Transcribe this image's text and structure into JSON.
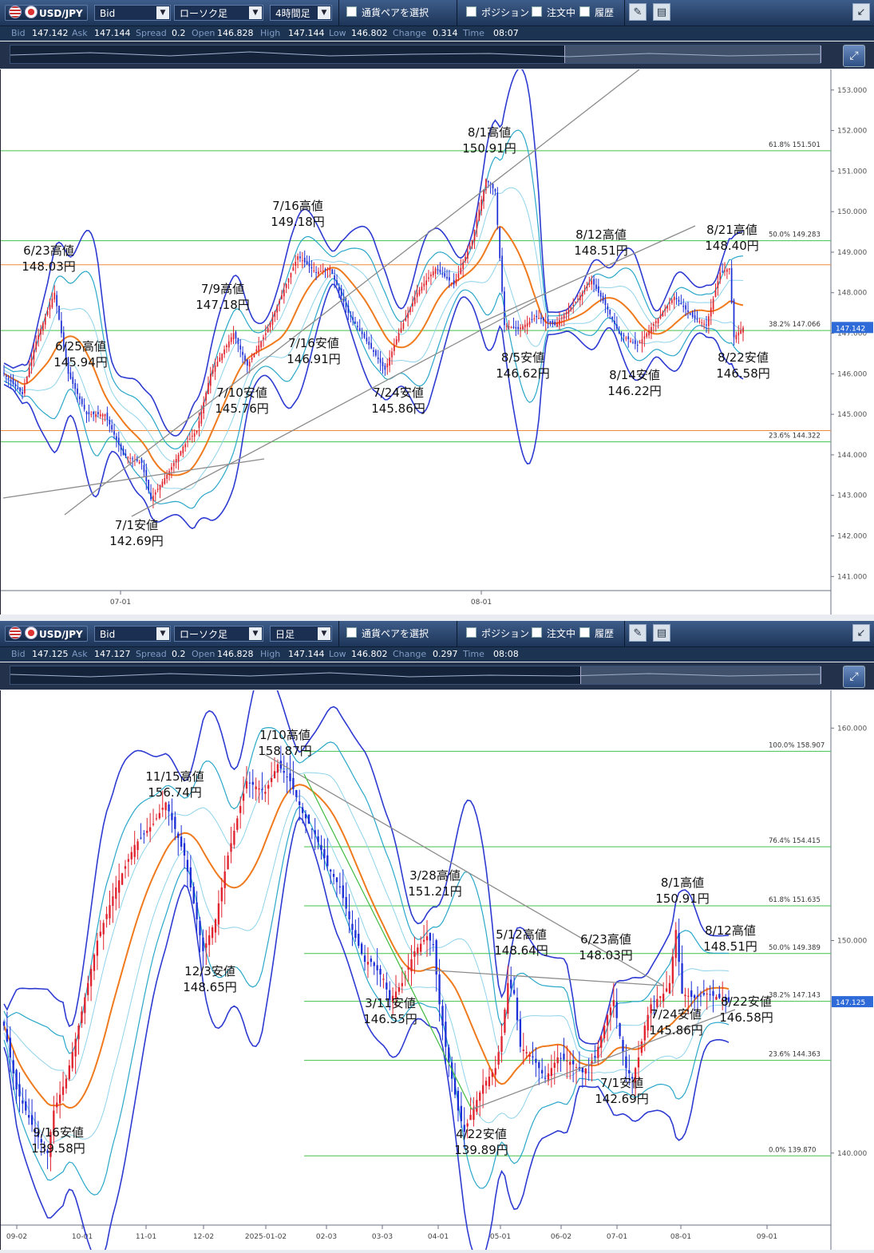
{
  "panels": [
    {
      "toolbar": {
        "pair": "USD/JPY",
        "price_type": "Bid",
        "chart_type": "ローソク足",
        "timeframe": "4時間足",
        "select_pair": "通貨ペアを選択",
        "position": "ポジション",
        "orders": "注文中",
        "history": "履歴"
      },
      "quote": {
        "bid_label": "Bid",
        "bid": "147.142",
        "ask_label": "Ask",
        "ask": "147.144",
        "spread_label": "Spread",
        "spread": "0.2",
        "open_label": "Open",
        "open": "146.828",
        "high_label": "High",
        "high": "147.144",
        "low_label": "Low",
        "low": "146.802",
        "change_label": "Change",
        "change": "0.314",
        "time_label": "Time",
        "time": "08:07"
      },
      "chart_data": {
        "type": "candlestick",
        "ylim": [
          140.75,
          153.35
        ],
        "yticks": [
          "153.000",
          "152.000",
          "151.000",
          "150.000",
          "149.000",
          "148.000",
          "147.000",
          "146.000",
          "145.000",
          "144.000",
          "143.000",
          "142.000",
          "141.000"
        ],
        "xticks": [
          "07-01",
          "08-01"
        ],
        "current_price": "147.142",
        "fib_levels": [
          {
            "label": "61.8%",
            "value": "151.501"
          },
          {
            "label": "50.0%",
            "value": "149.283"
          },
          {
            "label": "38.2%",
            "value": "147.066"
          },
          {
            "label": "23.6%",
            "value": "144.322"
          }
        ],
        "horizontal_lines": [
          148.69,
          144.6
        ],
        "annotations": [
          {
            "date": "6/23高値",
            "price": "148.03円"
          },
          {
            "date": "6/25高値",
            "price": "145.94円"
          },
          {
            "date": "7/1安値",
            "price": "142.69円"
          },
          {
            "date": "7/9高値",
            "price": "147.18円"
          },
          {
            "date": "7/10安値",
            "price": "145.76円"
          },
          {
            "date": "7/16高値",
            "price": "149.18円"
          },
          {
            "date": "7/16安値",
            "price": "146.91円"
          },
          {
            "date": "7/24安値",
            "price": "145.86円"
          },
          {
            "date": "8/1高値",
            "price": "150.91円"
          },
          {
            "date": "8/5安値",
            "price": "146.62円"
          },
          {
            "date": "8/12高値",
            "price": "148.51円"
          },
          {
            "date": "8/14安値",
            "price": "146.22円"
          },
          {
            "date": "8/21高値",
            "price": "148.40円"
          },
          {
            "date": "8/22安値",
            "price": "146.58円"
          }
        ],
        "anchors": [
          [
            0,
            146.0
          ],
          [
            8,
            145.5
          ],
          [
            14,
            146.8
          ],
          [
            22,
            148.0
          ],
          [
            28,
            146.0
          ],
          [
            36,
            145.0
          ],
          [
            44,
            145.0
          ],
          [
            52,
            144.0
          ],
          [
            60,
            143.8
          ],
          [
            64,
            142.9
          ],
          [
            72,
            143.6
          ],
          [
            78,
            144.2
          ],
          [
            84,
            144.6
          ],
          [
            90,
            146.0
          ],
          [
            100,
            147.0
          ],
          [
            106,
            146.2
          ],
          [
            114,
            147.0
          ],
          [
            120,
            147.8
          ],
          [
            128,
            148.9
          ],
          [
            136,
            148.5
          ],
          [
            142,
            148.6
          ],
          [
            150,
            147.5
          ],
          [
            158,
            146.8
          ],
          [
            166,
            146.1
          ],
          [
            172,
            147.0
          ],
          [
            180,
            148.0
          ],
          [
            188,
            148.6
          ],
          [
            196,
            148.2
          ],
          [
            204,
            149.3
          ],
          [
            210,
            150.8
          ],
          [
            214,
            150.5
          ],
          [
            218,
            147.2
          ],
          [
            224,
            147.1
          ],
          [
            232,
            147.4
          ],
          [
            240,
            147.2
          ],
          [
            248,
            147.7
          ],
          [
            256,
            148.3
          ],
          [
            262,
            147.7
          ],
          [
            268,
            147.0
          ],
          [
            276,
            146.7
          ],
          [
            284,
            147.3
          ],
          [
            292,
            147.9
          ],
          [
            300,
            147.4
          ],
          [
            306,
            147.2
          ],
          [
            312,
            148.5
          ],
          [
            316,
            148.6
          ],
          [
            318,
            146.9
          ],
          [
            322,
            147.14
          ]
        ]
      }
    },
    {
      "toolbar": {
        "pair": "USD/JPY",
        "price_type": "Bid",
        "chart_type": "ローソク足",
        "timeframe": "日足",
        "select_pair": "通貨ペアを選択",
        "position": "ポジション",
        "orders": "注文中",
        "history": "履歴"
      },
      "quote": {
        "bid_label": "Bid",
        "bid": "147.125",
        "ask_label": "Ask",
        "ask": "147.127",
        "spread_label": "Spread",
        "spread": "0.2",
        "open_label": "Open",
        "open": "146.828",
        "high_label": "High",
        "high": "147.144",
        "low_label": "Low",
        "low": "146.802",
        "change_label": "Change",
        "change": "0.297",
        "time_label": "Time",
        "time": "08:08"
      },
      "chart_data": {
        "type": "candlestick",
        "ylim": [
          136.8,
          161.4
        ],
        "yticks": [
          "160.000",
          "150.000",
          "140.000"
        ],
        "xticks": [
          "09-02",
          "10-01",
          "11-01",
          "12-02",
          "2025-01-02",
          "02-03",
          "03-03",
          "04-01",
          "05-01",
          "06-02",
          "07-01",
          "08-01",
          "09-01"
        ],
        "current_price": "147.125",
        "fib_levels": [
          {
            "label": "100.0%",
            "value": "158.907"
          },
          {
            "label": "76.4%",
            "value": "154.415"
          },
          {
            "label": "61.8%",
            "value": "151.635"
          },
          {
            "label": "50.0%",
            "value": "149.389"
          },
          {
            "label": "38.2%",
            "value": "147.143"
          },
          {
            "label": "23.6%",
            "value": "144.363"
          },
          {
            "label": "0.0%",
            "value": "139.870"
          }
        ],
        "annotations": [
          {
            "date": "9/16安値",
            "price": "139.58円"
          },
          {
            "date": "11/15高値",
            "price": "156.74円"
          },
          {
            "date": "12/3安値",
            "price": "148.65円"
          },
          {
            "date": "1/10高値",
            "price": "158.87円"
          },
          {
            "date": "3/11安値",
            "price": "146.55円"
          },
          {
            "date": "3/28高値",
            "price": "151.21円"
          },
          {
            "date": "4/22安値",
            "price": "139.89円"
          },
          {
            "date": "5/12高値",
            "price": "148.64円"
          },
          {
            "date": "6/23高値",
            "price": "148.03円"
          },
          {
            "date": "7/1安値",
            "price": "142.69円"
          },
          {
            "date": "7/24安値",
            "price": "145.86円"
          },
          {
            "date": "8/1高値",
            "price": "150.91円"
          },
          {
            "date": "8/12高値",
            "price": "148.51円"
          },
          {
            "date": "8/22安値",
            "price": "146.58円"
          }
        ],
        "anchors": [
          [
            0,
            146.0
          ],
          [
            4,
            143.0
          ],
          [
            10,
            141.0
          ],
          [
            14,
            140.0
          ],
          [
            16,
            142.0
          ],
          [
            20,
            143.5
          ],
          [
            24,
            146.0
          ],
          [
            30,
            150.0
          ],
          [
            36,
            152.5
          ],
          [
            42,
            154.5
          ],
          [
            48,
            155.5
          ],
          [
            52,
            156.5
          ],
          [
            58,
            154.0
          ],
          [
            62,
            151.0
          ],
          [
            64,
            149.5
          ],
          [
            68,
            151.0
          ],
          [
            72,
            154.0
          ],
          [
            78,
            157.5
          ],
          [
            84,
            157.0
          ],
          [
            88,
            158.3
          ],
          [
            92,
            157.5
          ],
          [
            96,
            156.0
          ],
          [
            100,
            155.0
          ],
          [
            104,
            153.5
          ],
          [
            108,
            152.5
          ],
          [
            112,
            150.5
          ],
          [
            116,
            149.0
          ],
          [
            118,
            149.0
          ],
          [
            122,
            148.2
          ],
          [
            124,
            147.2
          ],
          [
            128,
            148.0
          ],
          [
            132,
            149.5
          ],
          [
            136,
            150.2
          ],
          [
            138,
            149.8
          ],
          [
            140,
            147.0
          ],
          [
            142,
            145.0
          ],
          [
            144,
            143.5
          ],
          [
            146,
            142.0
          ],
          [
            148,
            141.0
          ],
          [
            150,
            141.8
          ],
          [
            154,
            143.2
          ],
          [
            158,
            144.0
          ],
          [
            160,
            145.5
          ],
          [
            162,
            148.0
          ],
          [
            164,
            147.5
          ],
          [
            166,
            145.0
          ],
          [
            170,
            144.5
          ],
          [
            174,
            143.5
          ],
          [
            178,
            144.5
          ],
          [
            182,
            144.3
          ],
          [
            186,
            143.8
          ],
          [
            190,
            144.5
          ],
          [
            194,
            146.5
          ],
          [
            196,
            147.2
          ],
          [
            198,
            145.5
          ],
          [
            200,
            144.0
          ],
          [
            202,
            143.5
          ],
          [
            204,
            144.5
          ],
          [
            206,
            146.0
          ],
          [
            208,
            147.0
          ],
          [
            212,
            147.5
          ],
          [
            214,
            148.0
          ],
          [
            216,
            150.5
          ],
          [
            218,
            147.5
          ],
          [
            222,
            147.3
          ],
          [
            226,
            147.5
          ],
          [
            230,
            147.3
          ],
          [
            233,
            147.1
          ]
        ]
      }
    }
  ]
}
